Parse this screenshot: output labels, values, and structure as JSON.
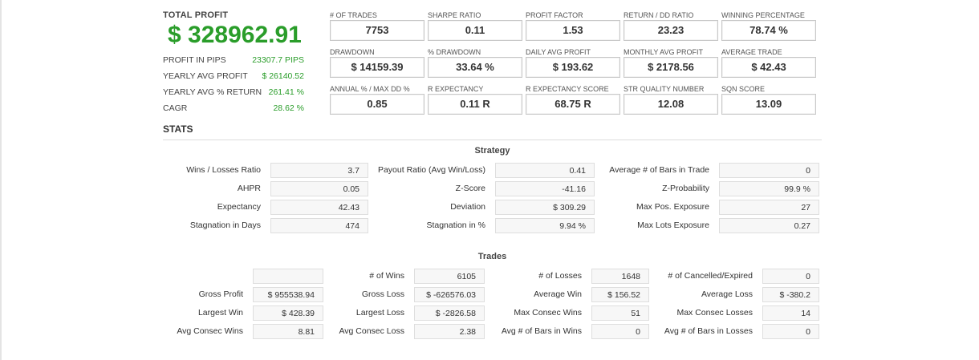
{
  "total_profit": {
    "title": "TOTAL PROFIT",
    "value": "$ 328962.91",
    "rows": [
      {
        "label": "PROFIT IN PIPS",
        "value": "23307.7 PIPS"
      },
      {
        "label": "YEARLY AVG PROFIT",
        "value": "$ 26140.52"
      },
      {
        "label": "YEARLY AVG % RETURN",
        "value": "261.41 %"
      },
      {
        "label": "CAGR",
        "value": "28.62 %"
      }
    ]
  },
  "metrics": [
    {
      "label": "# OF TRADES",
      "value": "7753"
    },
    {
      "label": "SHARPE RATIO",
      "value": "0.11"
    },
    {
      "label": "PROFIT FACTOR",
      "value": "1.53"
    },
    {
      "label": "RETURN / DD RATIO",
      "value": "23.23"
    },
    {
      "label": "WINNING PERCENTAGE",
      "value": "78.74 %"
    },
    {
      "label": "DRAWDOWN",
      "value": "$ 14159.39"
    },
    {
      "label": "% DRAWDOWN",
      "value": "33.64 %"
    },
    {
      "label": "DAILY AVG PROFIT",
      "value": "$ 193.62"
    },
    {
      "label": "MONTHLY AVG PROFIT",
      "value": "$ 2178.56"
    },
    {
      "label": "AVERAGE TRADE",
      "value": "$ 42.43"
    },
    {
      "label": "ANNUAL % / MAX DD %",
      "value": "0.85"
    },
    {
      "label": "R EXPECTANCY",
      "value": "0.11 R"
    },
    {
      "label": "R EXPECTANCY SCORE",
      "value": "68.75 R"
    },
    {
      "label": "STR QUALITY NUMBER",
      "value": "12.08"
    },
    {
      "label": "SQN SCORE",
      "value": "13.09"
    }
  ],
  "stats_title": "STATS",
  "strategy": {
    "title": "Strategy",
    "rows": [
      [
        {
          "label": "Wins / Losses Ratio",
          "value": "3.7"
        },
        {
          "label": "Payout Ratio (Avg Win/Loss)",
          "value": "0.41"
        },
        {
          "label": "Average # of Bars in Trade",
          "value": "0"
        }
      ],
      [
        {
          "label": "AHPR",
          "value": "0.05"
        },
        {
          "label": "Z-Score",
          "value": "-41.16"
        },
        {
          "label": "Z-Probability",
          "value": "99.9 %"
        }
      ],
      [
        {
          "label": "Expectancy",
          "value": "42.43"
        },
        {
          "label": "Deviation",
          "value": "$ 309.29"
        },
        {
          "label": "Max Pos. Exposure",
          "value": "27"
        }
      ],
      [
        {
          "label": "Stagnation in Days",
          "value": "474"
        },
        {
          "label": "Stagnation in %",
          "value": "9.94 %"
        },
        {
          "label": "Max Lots Exposure",
          "value": "0.27"
        }
      ]
    ]
  },
  "trades": {
    "title": "Trades",
    "rows": [
      [
        {
          "label": "",
          "value": ""
        },
        {
          "label": "# of Wins",
          "value": "6105"
        },
        {
          "label": "# of Losses",
          "value": "1648"
        },
        {
          "label": "# of Cancelled/Expired",
          "value": "0"
        }
      ],
      [
        {
          "label": "Gross Profit",
          "value": "$ 955538.94"
        },
        {
          "label": "Gross Loss",
          "value": "$ -626576.03"
        },
        {
          "label": "Average Win",
          "value": "$ 156.52"
        },
        {
          "label": "Average Loss",
          "value": "$ -380.2"
        }
      ],
      [
        {
          "label": "Largest Win",
          "value": "$ 428.39"
        },
        {
          "label": "Largest Loss",
          "value": "$ -2826.58"
        },
        {
          "label": "Max Consec Wins",
          "value": "51"
        },
        {
          "label": "Max Consec Losses",
          "value": "14"
        }
      ],
      [
        {
          "label": "Avg Consec Wins",
          "value": "8.81"
        },
        {
          "label": "Avg Consec Loss",
          "value": "2.38"
        },
        {
          "label": "Avg # of Bars in Wins",
          "value": "0"
        },
        {
          "label": "Avg # of Bars in Losses",
          "value": "0"
        }
      ]
    ]
  },
  "colors": {
    "profit_green": "#2a9d2a",
    "text": "#333333",
    "border": "#c8c8c8"
  }
}
